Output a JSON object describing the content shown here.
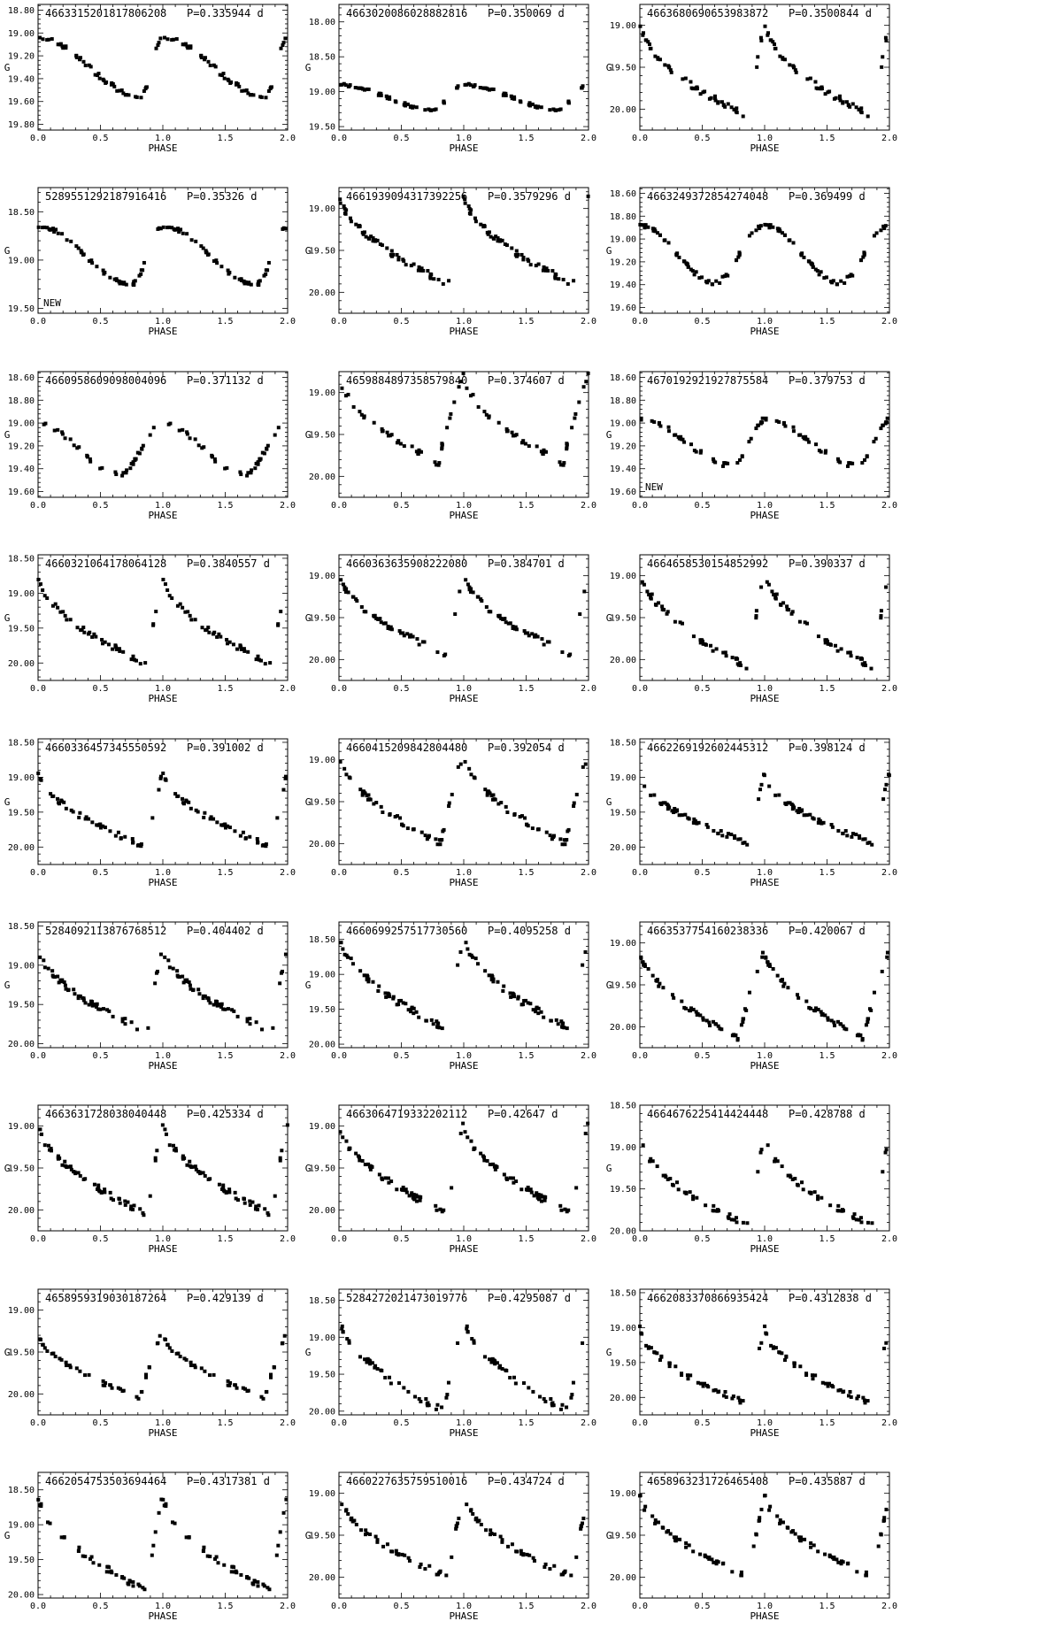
{
  "figure": {
    "xlabel": "PHASE",
    "ylabel": "G",
    "period_unit": "d",
    "x_ticks": [
      "0.0",
      "0.5",
      "1.0",
      "1.5",
      "2.0"
    ]
  },
  "chart_data": [
    {
      "type": "scatter",
      "id": "4663315201817806208",
      "period": "P=0.335944  d",
      "note": "",
      "ylim": [
        18.75,
        19.85
      ],
      "yticks": [
        "18.80",
        "19.00",
        "19.20",
        "19.40",
        "19.60",
        "19.80"
      ],
      "amp": 0.5,
      "mmax": 19.05,
      "rise": 0.18,
      "shape": "sin"
    },
    {
      "type": "scatter",
      "id": "4663020086028882816",
      "period": "P=0.350069  d",
      "note": "",
      "ylim": [
        17.75,
        19.55
      ],
      "yticks": [
        "18.00",
        "18.50",
        "19.00",
        "19.50"
      ],
      "amp": 0.35,
      "mmax": 18.9,
      "rise": 0.25,
      "shape": "sin"
    },
    {
      "type": "scatter",
      "id": "4663680690653983872",
      "period": "P=0.3500844  d",
      "note": "",
      "ylim": [
        18.75,
        20.25
      ],
      "yticks": [
        "19.00",
        "19.50",
        "20.00"
      ],
      "amp": 1.15,
      "mmax": 18.95,
      "rise": 0.12,
      "shape": "saw"
    },
    {
      "type": "scatter",
      "id": "5289551292187916416",
      "period": "P=0.35326  d",
      "note": "NEW",
      "ylim": [
        18.25,
        19.55
      ],
      "yticks": [
        "18.50",
        "19.00",
        "19.50"
      ],
      "amp": 0.6,
      "mmax": 18.65,
      "rise": 0.25,
      "shape": "sin"
    },
    {
      "type": "scatter",
      "id": "4661939094317392256",
      "period": "P=0.3579296  d",
      "note": "",
      "ylim": [
        18.75,
        20.25
      ],
      "yticks": [
        "19.00",
        "19.50",
        "20.00"
      ],
      "amp": 1.1,
      "mmax": 18.8,
      "rise": 0.12,
      "shape": "saw"
    },
    {
      "type": "scatter",
      "id": "4663249372854274048",
      "period": "P=0.369499  d",
      "note": "",
      "ylim": [
        18.55,
        19.65
      ],
      "yticks": [
        "18.60",
        "18.80",
        "19.00",
        "19.20",
        "19.40",
        "19.60"
      ],
      "amp": 0.5,
      "mmax": 18.88,
      "rise": 0.4,
      "shape": "sin"
    },
    {
      "type": "scatter",
      "id": "4660958609098004096",
      "period": "P=0.371132  d",
      "note": "",
      "ylim": [
        18.55,
        19.65
      ],
      "yticks": [
        "18.60",
        "18.80",
        "19.00",
        "19.20",
        "19.40",
        "19.60"
      ],
      "amp": 0.45,
      "mmax": 19.0,
      "rise": 0.35,
      "shape": "sin"
    },
    {
      "type": "scatter",
      "id": "4659884897358579840",
      "period": "P=0.374607  d",
      "note": "",
      "ylim": [
        18.75,
        20.25
      ],
      "yticks": [
        "19.00",
        "19.50",
        "20.00"
      ],
      "amp": 1.1,
      "mmax": 18.75,
      "rise": 0.2,
      "shape": "saw"
    },
    {
      "type": "scatter",
      "id": "4670192921927875584",
      "period": "P=0.379753  d",
      "note": "NEW",
      "ylim": [
        18.55,
        19.65
      ],
      "yticks": [
        "18.60",
        "18.80",
        "19.00",
        "19.20",
        "19.40",
        "19.60"
      ],
      "amp": 0.4,
      "mmax": 18.97,
      "rise": 0.25,
      "shape": "sin"
    },
    {
      "type": "scatter",
      "id": "4660321064178064128",
      "period": "P=0.3840557  d",
      "note": "",
      "ylim": [
        18.45,
        20.25
      ],
      "yticks": [
        "18.50",
        "19.00",
        "19.50",
        "20.00"
      ],
      "amp": 1.3,
      "mmax": 18.72,
      "rise": 0.12,
      "shape": "saw"
    },
    {
      "type": "scatter",
      "id": "4660363635908222080",
      "period": "P=0.384701  d",
      "note": "",
      "ylim": [
        18.75,
        20.25
      ],
      "yticks": [
        "19.00",
        "19.50",
        "20.00"
      ],
      "amp": 1.0,
      "mmax": 18.95,
      "rise": 0.12,
      "shape": "saw"
    },
    {
      "type": "scatter",
      "id": "4664658530154852992",
      "period": "P=0.390337  d",
      "note": "",
      "ylim": [
        18.75,
        20.25
      ],
      "yticks": [
        "19.00",
        "19.50",
        "20.00"
      ],
      "amp": 1.2,
      "mmax": 18.9,
      "rise": 0.12,
      "shape": "saw"
    },
    {
      "type": "scatter",
      "id": "4660336457345550592",
      "period": "P=0.391002  d",
      "note": "",
      "ylim": [
        18.45,
        20.25
      ],
      "yticks": [
        "18.50",
        "19.00",
        "19.50",
        "20.00"
      ],
      "amp": 1.1,
      "mmax": 18.9,
      "rise": 0.12,
      "shape": "saw"
    },
    {
      "type": "scatter",
      "id": "4660415209842804480",
      "period": "P=0.392054  d",
      "note": "",
      "ylim": [
        18.75,
        20.25
      ],
      "yticks": [
        "19.00",
        "19.50",
        "20.00"
      ],
      "amp": 1.1,
      "mmax": 18.9,
      "rise": 0.18,
      "shape": "saw"
    },
    {
      "type": "scatter",
      "id": "4662269192602445312",
      "period": "P=0.398124  d",
      "note": "",
      "ylim": [
        18.45,
        20.25
      ],
      "yticks": [
        "18.50",
        "19.00",
        "19.50",
        "20.00"
      ],
      "amp": 1.0,
      "mmax": 18.95,
      "rise": 0.12,
      "shape": "saw"
    },
    {
      "type": "scatter",
      "id": "5284092113876768512",
      "period": "P=0.404402  d",
      "note": "",
      "ylim": [
        18.45,
        20.05
      ],
      "yticks": [
        "18.50",
        "19.00",
        "19.50",
        "20.00"
      ],
      "amp": 1.1,
      "mmax": 18.75,
      "rise": 0.12,
      "shape": "saw"
    },
    {
      "type": "scatter",
      "id": "4660699257517730560",
      "period": "P=0.4095258  d",
      "note": "",
      "ylim": [
        18.25,
        20.05
      ],
      "yticks": [
        "18.50",
        "19.00",
        "19.50",
        "20.00"
      ],
      "amp": 1.4,
      "mmax": 18.4,
      "rise": 0.12,
      "shape": "saw"
    },
    {
      "type": "scatter",
      "id": "4663537754160238336",
      "period": "P=0.420067  d",
      "note": "",
      "ylim": [
        18.75,
        20.25
      ],
      "yticks": [
        "19.00",
        "19.50",
        "20.00"
      ],
      "amp": 1.1,
      "mmax": 19.05,
      "rise": 0.2,
      "shape": "saw"
    },
    {
      "type": "scatter",
      "id": "4663631728038040448",
      "period": "P=0.425334  d",
      "note": "",
      "ylim": [
        18.75,
        20.25
      ],
      "yticks": [
        "19.00",
        "19.50",
        "20.00"
      ],
      "amp": 1.1,
      "mmax": 18.95,
      "rise": 0.12,
      "shape": "saw"
    },
    {
      "type": "scatter",
      "id": "4663064719332202112",
      "period": "P=0.42647  d",
      "note": "",
      "ylim": [
        18.75,
        20.25
      ],
      "yticks": [
        "19.00",
        "19.50",
        "20.00"
      ],
      "amp": 1.1,
      "mmax": 18.95,
      "rise": 0.12,
      "shape": "saw"
    },
    {
      "type": "scatter",
      "id": "4664676225414424448",
      "period": "P=0.428788  d",
      "note": "",
      "ylim": [
        18.5,
        20.0
      ],
      "yticks": [
        "18.50",
        "19.00",
        "19.50",
        "20.00"
      ],
      "amp": 1.1,
      "mmax": 18.85,
      "rise": 0.12,
      "shape": "saw"
    },
    {
      "type": "scatter",
      "id": "4658959319030187264",
      "period": "P=0.429139  d",
      "note": "",
      "ylim": [
        18.75,
        20.25
      ],
      "yticks": [
        "19.00",
        "19.50",
        "20.00"
      ],
      "amp": 0.8,
      "mmax": 19.25,
      "rise": 0.18,
      "shape": "saw"
    },
    {
      "type": "scatter",
      "id": "5284272021473019776",
      "period": "P=0.4295087  d",
      "note": "",
      "ylim": [
        18.35,
        20.05
      ],
      "yticks": [
        "18.50",
        "19.00",
        "19.50",
        "20.00"
      ],
      "amp": 1.3,
      "mmax": 18.7,
      "rise": 0.15,
      "shape": "saw"
    },
    {
      "type": "scatter",
      "id": "4662083370866935424",
      "period": "P=0.4312838  d",
      "note": "",
      "ylim": [
        18.45,
        20.25
      ],
      "yticks": [
        "18.50",
        "19.00",
        "19.50",
        "20.00"
      ],
      "amp": 1.1,
      "mmax": 19.0,
      "rise": 0.12,
      "shape": "saw"
    },
    {
      "type": "scatter",
      "id": "4662054753503694464",
      "period": "P=0.4317381  d",
      "note": "",
      "ylim": [
        18.25,
        20.05
      ],
      "yticks": [
        "18.50",
        "19.00",
        "19.50",
        "20.00"
      ],
      "amp": 1.4,
      "mmax": 18.55,
      "rise": 0.12,
      "shape": "saw"
    },
    {
      "type": "scatter",
      "id": "4660227635759510016",
      "period": "P=0.434724  d",
      "note": "",
      "ylim": [
        18.75,
        20.25
      ],
      "yticks": [
        "19.00",
        "19.50",
        "20.00"
      ],
      "amp": 1.0,
      "mmax": 19.0,
      "rise": 0.12,
      "shape": "saw"
    },
    {
      "type": "scatter",
      "id": "4658963231726465408",
      "period": "P=0.435887  d",
      "note": "",
      "ylim": [
        18.75,
        20.25
      ],
      "yticks": [
        "19.00",
        "19.50",
        "20.00"
      ],
      "amp": 1.0,
      "mmax": 19.0,
      "rise": 0.12,
      "shape": "saw"
    }
  ]
}
